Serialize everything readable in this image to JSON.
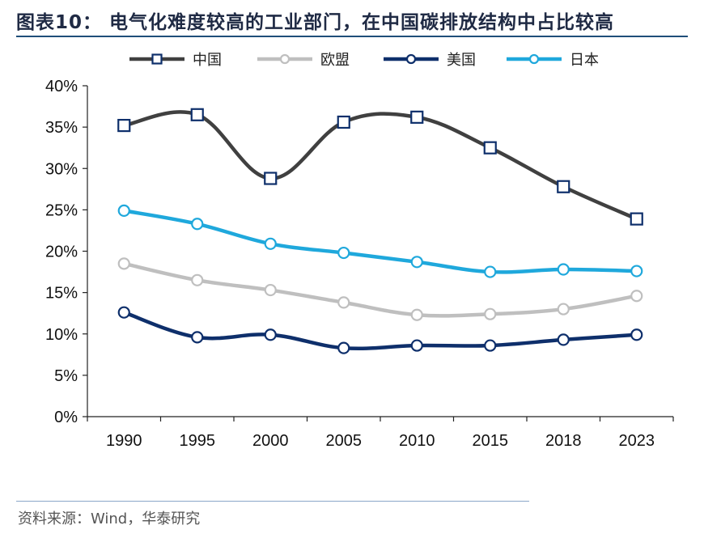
{
  "header": {
    "title": "图表10： 电气化难度较高的工业部门，在中国碳排放结构中占比较高"
  },
  "footer": {
    "source": "资料来源：Wind，华泰研究"
  },
  "chart_data": {
    "type": "line",
    "title": "",
    "xlabel": "",
    "ylabel": "",
    "categories": [
      "1990",
      "1995",
      "2000",
      "2005",
      "2010",
      "2015",
      "2018",
      "2023"
    ],
    "ylim": [
      0,
      40
    ],
    "yticks": [
      "0%",
      "5%",
      "10%",
      "15%",
      "20%",
      "25%",
      "30%",
      "35%",
      "40%"
    ],
    "legend_position": "top",
    "grid": false,
    "series": [
      {
        "name": "中国",
        "color": "#404040",
        "marker": "square",
        "values": [
          35.2,
          36.5,
          28.8,
          35.6,
          36.2,
          32.5,
          27.8,
          23.9
        ]
      },
      {
        "name": "欧盟",
        "color": "#bfbfbf",
        "marker": "circle",
        "values": [
          18.5,
          16.5,
          15.3,
          13.8,
          12.3,
          12.4,
          13.0,
          14.6
        ]
      },
      {
        "name": "美国",
        "color": "#0e2f6b",
        "marker": "circle",
        "values": [
          12.6,
          9.6,
          9.9,
          8.3,
          8.6,
          8.6,
          9.3,
          9.9
        ]
      },
      {
        "name": "日本",
        "color": "#1fa8dc",
        "marker": "circle",
        "values": [
          24.9,
          23.3,
          20.9,
          19.8,
          18.7,
          17.5,
          17.8,
          17.6
        ]
      }
    ]
  }
}
